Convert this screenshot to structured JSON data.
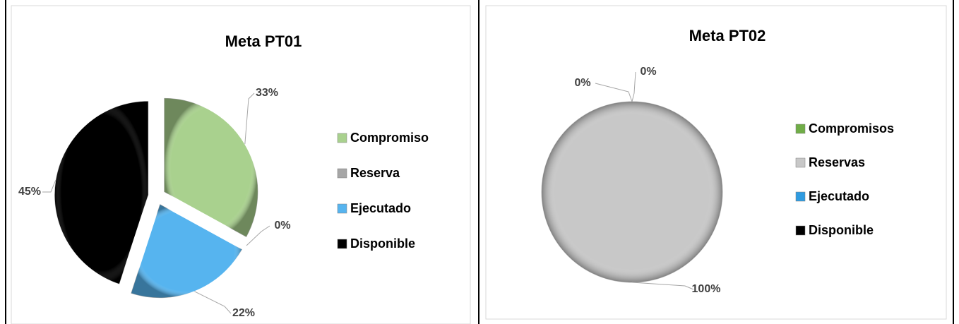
{
  "chart_data": [
    {
      "type": "pie",
      "title": "Meta PT01",
      "categories": [
        "Compromiso",
        "Reserva",
        "Ejecutado",
        "Disponible"
      ],
      "values": [
        33,
        0,
        22,
        45
      ],
      "value_labels": [
        "33%",
        "0%",
        "22%",
        "45%"
      ],
      "colors": [
        "#a9d18e",
        "#a6a6a6",
        "#56b4ef",
        "#000000"
      ],
      "exploded": true,
      "legend": "right"
    },
    {
      "type": "pie",
      "title": "Meta PT02",
      "categories": [
        "Compromisos",
        "Reservas",
        "Ejecutado",
        "Disponible"
      ],
      "values": [
        0,
        100,
        0,
        null
      ],
      "value_labels": [
        "0%",
        "100%",
        "0%",
        null
      ],
      "colors": [
        "#70ad47",
        "#c8c8c8",
        "#2f9be0",
        "#000000"
      ],
      "exploded": false,
      "legend": "right"
    }
  ]
}
